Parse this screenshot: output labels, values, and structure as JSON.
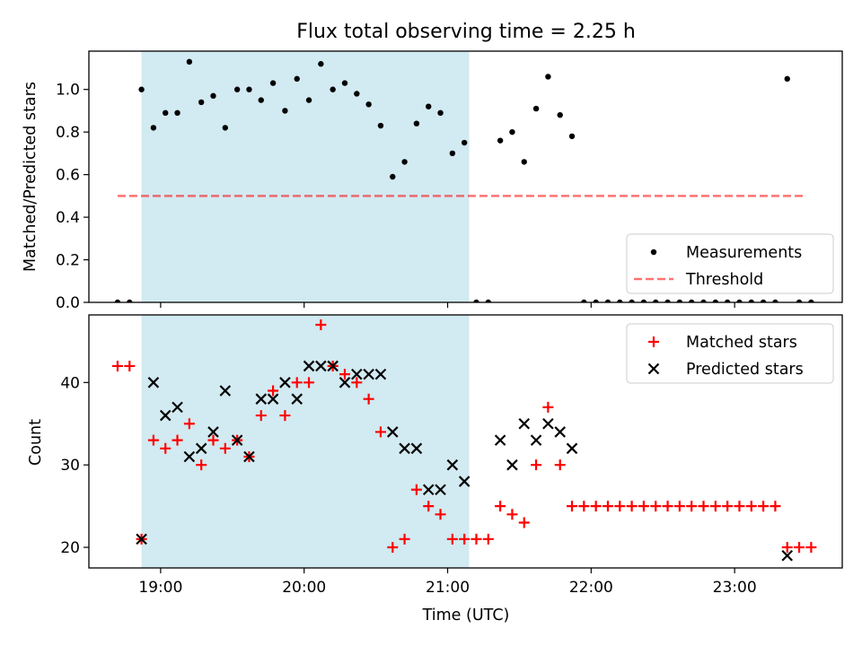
{
  "title": "Flux total observing time = 2.25 h",
  "colors": {
    "shade": "#add8e6",
    "measurements": "#000000",
    "threshold": "#ff0000",
    "matched": "#ff0000",
    "predicted": "#000000"
  },
  "chart_data": [
    {
      "type": "scatter",
      "title": "Flux total observing time = 2.25 h",
      "xlabel": "",
      "ylabel": "Matched/Predicted stars",
      "xlim": [
        "18:30",
        "23:45"
      ],
      "ylim": [
        0,
        1.18
      ],
      "yticks": [
        "0.0",
        "0.2",
        "0.4",
        "0.6",
        "0.8",
        "1.0"
      ],
      "legend": "lower-right",
      "shaded_interval": [
        "18:52",
        "21:09"
      ],
      "threshold": {
        "name": "Threshold",
        "value": 0.5,
        "x_range": [
          "18:42",
          "23:30"
        ]
      },
      "series": [
        {
          "name": "Measurements",
          "marker": "dot",
          "points": [
            [
              "18:42",
              0.0
            ],
            [
              "18:47",
              0.0
            ],
            [
              "18:52",
              1.0
            ],
            [
              "18:57",
              0.82
            ],
            [
              "19:02",
              0.89
            ],
            [
              "19:07",
              0.89
            ],
            [
              "19:12",
              1.13
            ],
            [
              "19:17",
              0.94
            ],
            [
              "19:22",
              0.97
            ],
            [
              "19:27",
              0.82
            ],
            [
              "19:32",
              1.0
            ],
            [
              "19:37",
              1.0
            ],
            [
              "19:42",
              0.95
            ],
            [
              "19:47",
              1.03
            ],
            [
              "19:52",
              0.9
            ],
            [
              "19:57",
              1.05
            ],
            [
              "20:02",
              0.95
            ],
            [
              "20:07",
              1.12
            ],
            [
              "20:12",
              1.0
            ],
            [
              "20:17",
              1.03
            ],
            [
              "20:22",
              0.98
            ],
            [
              "20:27",
              0.93
            ],
            [
              "20:32",
              0.83
            ],
            [
              "20:37",
              0.59
            ],
            [
              "20:42",
              0.66
            ],
            [
              "20:47",
              0.84
            ],
            [
              "20:52",
              0.92
            ],
            [
              "20:57",
              0.89
            ],
            [
              "21:02",
              0.7
            ],
            [
              "21:07",
              0.75
            ],
            [
              "21:12",
              0.0
            ],
            [
              "21:17",
              0.0
            ],
            [
              "21:22",
              0.76
            ],
            [
              "21:27",
              0.8
            ],
            [
              "21:32",
              0.66
            ],
            [
              "21:37",
              0.91
            ],
            [
              "21:42",
              1.06
            ],
            [
              "21:47",
              0.88
            ],
            [
              "21:52",
              0.78
            ],
            [
              "21:57",
              0.0
            ],
            [
              "22:02",
              0.0
            ],
            [
              "22:07",
              0.0
            ],
            [
              "22:12",
              0.0
            ],
            [
              "22:17",
              0.0
            ],
            [
              "22:22",
              0.0
            ],
            [
              "22:27",
              0.0
            ],
            [
              "22:32",
              0.0
            ],
            [
              "22:37",
              0.0
            ],
            [
              "22:42",
              0.0
            ],
            [
              "22:47",
              0.0
            ],
            [
              "22:52",
              0.0
            ],
            [
              "22:57",
              0.0
            ],
            [
              "23:02",
              0.0
            ],
            [
              "23:07",
              0.0
            ],
            [
              "23:12",
              0.0
            ],
            [
              "23:17",
              0.0
            ],
            [
              "23:22",
              1.05
            ],
            [
              "23:27",
              0.0
            ],
            [
              "23:32",
              0.0
            ]
          ]
        }
      ]
    },
    {
      "type": "scatter",
      "xlabel": "Time (UTC)",
      "ylabel": "Count",
      "xlim": [
        "18:30",
        "23:45"
      ],
      "ylim": [
        17.5,
        48.2
      ],
      "xticks": [
        "19:00",
        "20:00",
        "21:00",
        "22:00",
        "23:00"
      ],
      "yticks": [
        "20",
        "30",
        "40"
      ],
      "legend": "upper-right",
      "shaded_interval": [
        "18:52",
        "21:09"
      ],
      "series": [
        {
          "name": "Matched stars",
          "marker": "plus",
          "points": [
            [
              "18:42",
              42
            ],
            [
              "18:47",
              42
            ],
            [
              "18:52",
              21
            ],
            [
              "18:57",
              33
            ],
            [
              "19:02",
              32
            ],
            [
              "19:07",
              33
            ],
            [
              "19:12",
              35
            ],
            [
              "19:17",
              30
            ],
            [
              "19:22",
              33
            ],
            [
              "19:27",
              32
            ],
            [
              "19:32",
              33
            ],
            [
              "19:37",
              31
            ],
            [
              "19:42",
              36
            ],
            [
              "19:47",
              39
            ],
            [
              "19:52",
              36
            ],
            [
              "19:57",
              40
            ],
            [
              "20:02",
              40
            ],
            [
              "20:07",
              47
            ],
            [
              "20:12",
              42
            ],
            [
              "20:17",
              41
            ],
            [
              "20:22",
              40
            ],
            [
              "20:27",
              38
            ],
            [
              "20:32",
              34
            ],
            [
              "20:37",
              20
            ],
            [
              "20:42",
              21
            ],
            [
              "20:47",
              27
            ],
            [
              "20:52",
              25
            ],
            [
              "20:57",
              24
            ],
            [
              "21:02",
              21
            ],
            [
              "21:07",
              21
            ],
            [
              "21:12",
              21
            ],
            [
              "21:17",
              21
            ],
            [
              "21:22",
              25
            ],
            [
              "21:27",
              24
            ],
            [
              "21:32",
              23
            ],
            [
              "21:37",
              30
            ],
            [
              "21:42",
              37
            ],
            [
              "21:47",
              30
            ],
            [
              "21:52",
              25
            ],
            [
              "21:57",
              25
            ],
            [
              "22:02",
              25
            ],
            [
              "22:07",
              25
            ],
            [
              "22:12",
              25
            ],
            [
              "22:17",
              25
            ],
            [
              "22:22",
              25
            ],
            [
              "22:27",
              25
            ],
            [
              "22:32",
              25
            ],
            [
              "22:37",
              25
            ],
            [
              "22:42",
              25
            ],
            [
              "22:47",
              25
            ],
            [
              "22:52",
              25
            ],
            [
              "22:57",
              25
            ],
            [
              "23:02",
              25
            ],
            [
              "23:07",
              25
            ],
            [
              "23:12",
              25
            ],
            [
              "23:17",
              25
            ],
            [
              "23:22",
              20
            ],
            [
              "23:27",
              20
            ],
            [
              "23:32",
              20
            ]
          ]
        },
        {
          "name": "Predicted stars",
          "marker": "x",
          "points": [
            [
              "18:52",
              21
            ],
            [
              "18:57",
              40
            ],
            [
              "19:02",
              36
            ],
            [
              "19:07",
              37
            ],
            [
              "19:12",
              31
            ],
            [
              "19:17",
              32
            ],
            [
              "19:22",
              34
            ],
            [
              "19:27",
              39
            ],
            [
              "19:32",
              33
            ],
            [
              "19:37",
              31
            ],
            [
              "19:42",
              38
            ],
            [
              "19:47",
              38
            ],
            [
              "19:52",
              40
            ],
            [
              "19:57",
              38
            ],
            [
              "20:02",
              42
            ],
            [
              "20:07",
              42
            ],
            [
              "20:12",
              42
            ],
            [
              "20:17",
              40
            ],
            [
              "20:22",
              41
            ],
            [
              "20:27",
              41
            ],
            [
              "20:32",
              41
            ],
            [
              "20:37",
              34
            ],
            [
              "20:42",
              32
            ],
            [
              "20:47",
              32
            ],
            [
              "20:52",
              27
            ],
            [
              "20:57",
              27
            ],
            [
              "21:02",
              30
            ],
            [
              "21:07",
              28
            ],
            [
              "21:22",
              33
            ],
            [
              "21:27",
              30
            ],
            [
              "21:32",
              35
            ],
            [
              "21:37",
              33
            ],
            [
              "21:42",
              35
            ],
            [
              "21:47",
              34
            ],
            [
              "21:52",
              32
            ],
            [
              "23:22",
              19
            ]
          ]
        }
      ]
    }
  ]
}
